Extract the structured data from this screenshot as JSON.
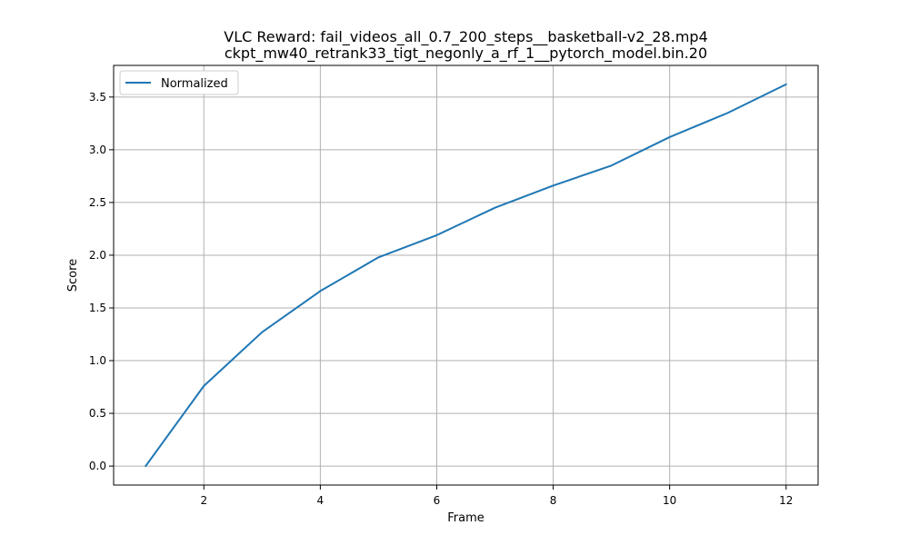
{
  "chart_data": {
    "type": "line",
    "title": "VLC Reward: fail_videos_all_0.7_200_steps__basketball-v2_28.mp4",
    "subtitle": "ckpt_mw40_retrank33_tigt_negonly_a_rf_1__pytorch_model.bin.20",
    "xlabel": "Frame",
    "ylabel": "Score",
    "xlim": [
      0.45,
      12.55
    ],
    "ylim": [
      -0.18,
      3.8
    ],
    "x_ticks": [
      2,
      4,
      6,
      8,
      10,
      12
    ],
    "y_ticks": [
      0.0,
      0.5,
      1.0,
      1.5,
      2.0,
      2.5,
      3.0,
      3.5
    ],
    "x_tick_labels": [
      "2",
      "4",
      "6",
      "8",
      "10",
      "12"
    ],
    "y_tick_labels": [
      "0.0",
      "0.5",
      "1.0",
      "1.5",
      "2.0",
      "2.5",
      "3.0",
      "3.5"
    ],
    "grid": true,
    "legend_position": "top-left",
    "series": [
      {
        "name": "Normalized",
        "color": "#1f77b4",
        "x": [
          1,
          2,
          3,
          4,
          5,
          6,
          7,
          8,
          9,
          10,
          11,
          12
        ],
        "values": [
          0.0,
          0.76,
          1.27,
          1.66,
          1.98,
          2.19,
          2.45,
          2.66,
          2.85,
          3.12,
          3.35,
          3.62
        ]
      }
    ]
  }
}
